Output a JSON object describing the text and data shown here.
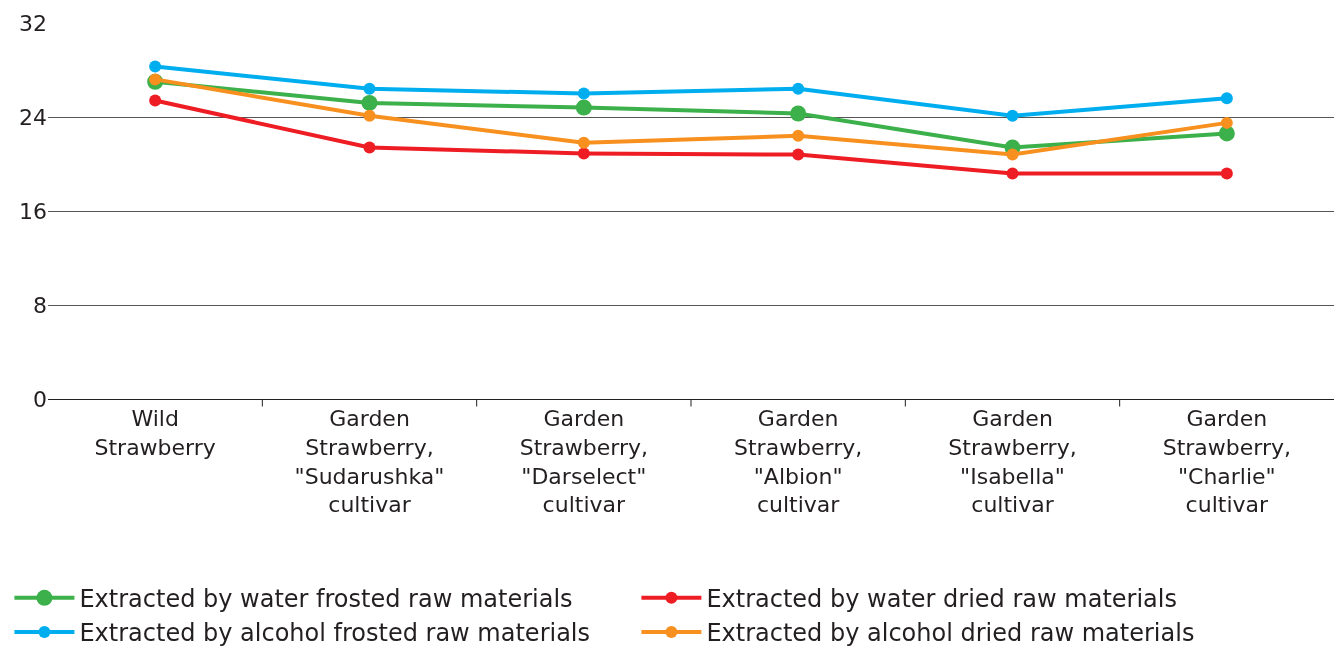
{
  "chart_data": {
    "type": "line",
    "categories": [
      "Wild Strawberry",
      "Garden Strawberry, \"Sudarushka\" cultivar",
      "Garden Strawberry, \"Darselect\" cultivar",
      "Garden Strawberry, \"Albion\" cultivar",
      "Garden Strawberry, \"Isabella\" cultivar",
      "Garden Strawberry, \"Charlie\" cultivar"
    ],
    "series": [
      {
        "name": "Extracted by water frosted raw materials",
        "color": "#3cb04a",
        "values": [
          27.0,
          25.2,
          24.8,
          24.3,
          21.4,
          22.6
        ]
      },
      {
        "name": "Extracted by water dried raw materials",
        "color": "#ee1d24",
        "values": [
          25.4,
          21.4,
          20.9,
          20.8,
          19.2,
          19.2
        ]
      },
      {
        "name": "Extracted by alcohol frosted raw materials",
        "color": "#00aeef",
        "values": [
          28.3,
          26.4,
          26.0,
          26.4,
          24.1,
          25.6
        ]
      },
      {
        "name": "Extracted by alcohol dried raw materials",
        "color": "#f7901e",
        "values": [
          27.2,
          24.1,
          21.8,
          22.4,
          20.8,
          23.5
        ]
      }
    ],
    "ylim": [
      0,
      32
    ],
    "yticks": [
      0,
      8,
      16,
      24,
      32
    ],
    "grid": "y",
    "legend": "bottom",
    "marker": "circle",
    "line_style": "solid"
  }
}
